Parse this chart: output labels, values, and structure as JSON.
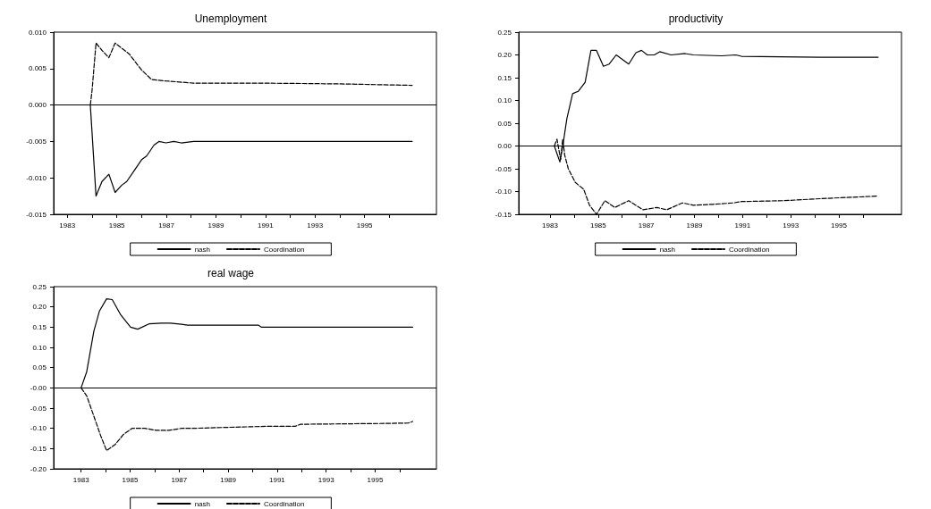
{
  "chart_data": [
    {
      "type": "line",
      "title": "Unemployment",
      "legend": "bottom",
      "grid": false,
      "marker": "none",
      "xlim": [
        1982.45,
        1997.9
      ],
      "ylim": [
        -0.015,
        0.01
      ],
      "xticks": [
        1983,
        {
          "value": 1984,
          "label": null
        },
        1985,
        {
          "value": 1986,
          "label": null
        },
        1987,
        {
          "value": 1988,
          "label": null
        },
        1989,
        {
          "value": 1990,
          "label": null
        },
        1991,
        {
          "value": 1992,
          "label": null
        },
        1993,
        {
          "value": 1994,
          "label": null
        },
        1995,
        {
          "value": 1996,
          "label": null
        }
      ],
      "yticks": [
        {
          "value": -0.015,
          "label": "-0.015"
        },
        {
          "value": -0.01,
          "label": "-0.010"
        },
        {
          "value": -0.005,
          "label": "-0.005"
        },
        {
          "value": 0,
          "label": "0.000"
        },
        {
          "value": 0.005,
          "label": "0.005"
        },
        {
          "value": 0.01,
          "label": "0.010"
        }
      ],
      "ref_lines": [
        {
          "axis": "y",
          "value": 0,
          "color": "#000000"
        }
      ],
      "series": [
        {
          "name": "nash",
          "color": "#000000",
          "line_style": "solid",
          "x": [
            1983.93,
            1984.16,
            1984.4,
            1984.68,
            1984.93,
            1985.2,
            1985.4,
            1985.7,
            1986.0,
            1986.2,
            1986.5,
            1986.7,
            1986.98,
            1987.3,
            1987.6,
            1988.1,
            1990,
            1993,
            1996.92
          ],
          "values": [
            0,
            -0.0125,
            -0.0105,
            -0.0095,
            -0.012,
            -0.011,
            -0.0105,
            -0.009,
            -0.0075,
            -0.007,
            -0.0055,
            -0.005,
            -0.0052,
            -0.005,
            -0.0052,
            -0.005,
            -0.005,
            -0.005,
            -0.005
          ]
        },
        {
          "name": "Coordination",
          "color": "#000000",
          "line_style": "dashed",
          "x": [
            1983.93,
            1984.0,
            1984.16,
            1984.4,
            1984.68,
            1984.93,
            1985.5,
            1986.0,
            1986.4,
            1986.98,
            1988.1,
            1991,
            1994,
            1996.92
          ],
          "values": [
            0,
            0.002,
            0.0085,
            0.0075,
            0.0065,
            0.0085,
            0.007,
            0.0048,
            0.0035,
            0.0033,
            0.003,
            0.003,
            0.0029,
            0.0027
          ]
        }
      ]
    },
    {
      "type": "line",
      "title": "productivity",
      "legend": "bottom",
      "grid": false,
      "marker": "none",
      "xlim": [
        1981.7,
        1997.6
      ],
      "ylim": [
        -0.15,
        0.25
      ],
      "xticks": [
        1983,
        {
          "value": 1984,
          "label": null
        },
        1985,
        {
          "value": 1986,
          "label": null
        },
        1987,
        {
          "value": 1988,
          "label": null
        },
        1989,
        {
          "value": 1990,
          "label": null
        },
        1991,
        {
          "value": 1992,
          "label": null
        },
        1993,
        {
          "value": 1994,
          "label": null
        },
        1995,
        {
          "value": 1996,
          "label": null
        }
      ],
      "yticks": [
        {
          "value": -0.15,
          "label": "-0.15"
        },
        {
          "value": -0.1,
          "label": "-0.10"
        },
        {
          "value": -0.05,
          "label": "-0.05"
        },
        {
          "value": 0,
          "label": "0.00"
        },
        {
          "value": 0.05,
          "label": "0.05"
        },
        {
          "value": 0.1,
          "label": "0.10"
        },
        {
          "value": 0.15,
          "label": "0.15"
        },
        {
          "value": 0.2,
          "label": "0.20"
        },
        {
          "value": 0.25,
          "label": "0.25"
        }
      ],
      "ref_lines": [
        {
          "axis": "y",
          "value": 0,
          "color": "#000000"
        }
      ],
      "series": [
        {
          "name": "nash",
          "color": "#000000",
          "line_style": "solid",
          "x": [
            1983.18,
            1983.41,
            1983.53,
            1983.7,
            1983.94,
            1984.17,
            1984.46,
            1984.7,
            1984.93,
            1985.22,
            1985.46,
            1985.75,
            1986.27,
            1986.57,
            1986.8,
            1987.04,
            1987.33,
            1987.56,
            1988.03,
            1988.61,
            1988.96,
            1990.13,
            1990.72,
            1990.95,
            1994.23,
            1996.63
          ],
          "values": [
            0,
            -0.035,
            0,
            0.06,
            0.115,
            0.12,
            0.14,
            0.21,
            0.21,
            0.175,
            0.18,
            0.2,
            0.18,
            0.205,
            0.21,
            0.2,
            0.2,
            0.207,
            0.2,
            0.203,
            0.2,
            0.198,
            0.2,
            0.197,
            0.195,
            0.195
          ]
        },
        {
          "name": "Coordination",
          "color": "#000000",
          "line_style": "dashed",
          "x": [
            1983.18,
            1983.29,
            1983.44,
            1983.53,
            1983.61,
            1983.76,
            1984.05,
            1984.4,
            1984.64,
            1984.93,
            1985.28,
            1985.69,
            1986.27,
            1986.86,
            1987.44,
            1987.85,
            1988.5,
            1988.96,
            1989.78,
            1990.6,
            1990.95,
            1992.71,
            1994.46,
            1996.63
          ],
          "values": [
            0,
            0.015,
            -0.03,
            0.015,
            -0.02,
            -0.05,
            -0.08,
            -0.095,
            -0.13,
            -0.15,
            -0.12,
            -0.135,
            -0.12,
            -0.14,
            -0.135,
            -0.14,
            -0.125,
            -0.13,
            -0.128,
            -0.125,
            -0.122,
            -0.12,
            -0.115,
            -0.11
          ]
        }
      ]
    },
    {
      "type": "line",
      "title": "real wage",
      "legend": "bottom",
      "grid": false,
      "marker": "none",
      "xlim": [
        1981.88,
        1997.5
      ],
      "ylim": [
        -0.2,
        0.25
      ],
      "xticks": [
        1983,
        {
          "value": 1984,
          "label": null
        },
        1985,
        {
          "value": 1986,
          "label": null
        },
        1987,
        {
          "value": 1988,
          "label": null
        },
        1989,
        {
          "value": 1990,
          "label": null
        },
        1991,
        {
          "value": 1992,
          "label": null
        },
        1993,
        {
          "value": 1994,
          "label": null
        },
        1995,
        {
          "value": 1996,
          "label": null
        }
      ],
      "yticks": [
        {
          "value": -0.2,
          "label": "-0.20"
        },
        {
          "value": -0.15,
          "label": "-0.15"
        },
        {
          "value": -0.1,
          "label": "-0.10"
        },
        {
          "value": -0.05,
          "label": "-0.05"
        },
        {
          "value": 0,
          "label": "-0.00"
        },
        {
          "value": 0.05,
          "label": "0.05"
        },
        {
          "value": 0.1,
          "label": "0.10"
        },
        {
          "value": 0.15,
          "label": "0.15"
        },
        {
          "value": 0.2,
          "label": "0.20"
        },
        {
          "value": 0.25,
          "label": "0.25"
        }
      ],
      "ref_lines": [
        {
          "axis": "y",
          "value": 0,
          "color": "#000000"
        }
      ],
      "series": [
        {
          "name": "nash",
          "color": "#000000",
          "line_style": "solid",
          "x": [
            1983.0,
            1983.23,
            1983.52,
            1983.75,
            1984.04,
            1984.27,
            1984.62,
            1985.02,
            1985.31,
            1985.77,
            1986.29,
            1986.64,
            1987.1,
            1987.34,
            1990.23,
            1990.35,
            1996.53
          ],
          "values": [
            0,
            0.04,
            0.14,
            0.19,
            0.22,
            0.218,
            0.18,
            0.15,
            0.145,
            0.158,
            0.16,
            0.16,
            0.157,
            0.155,
            0.155,
            0.15,
            0.15
          ]
        },
        {
          "name": "Coordination",
          "color": "#000000",
          "line_style": "dashed",
          "x": [
            1983.0,
            1983.23,
            1983.52,
            1983.81,
            1984.04,
            1984.39,
            1984.73,
            1985.08,
            1985.6,
            1986.06,
            1986.58,
            1987.1,
            1987.57,
            1988.72,
            1990.57,
            1991.73,
            1991.96,
            1995.2,
            1996.35,
            1996.53
          ],
          "values": [
            0,
            -0.02,
            -0.07,
            -0.12,
            -0.155,
            -0.14,
            -0.115,
            -0.1,
            -0.1,
            -0.105,
            -0.105,
            -0.1,
            -0.1,
            -0.098,
            -0.095,
            -0.095,
            -0.09,
            -0.088,
            -0.087,
            -0.083
          ]
        }
      ]
    }
  ]
}
